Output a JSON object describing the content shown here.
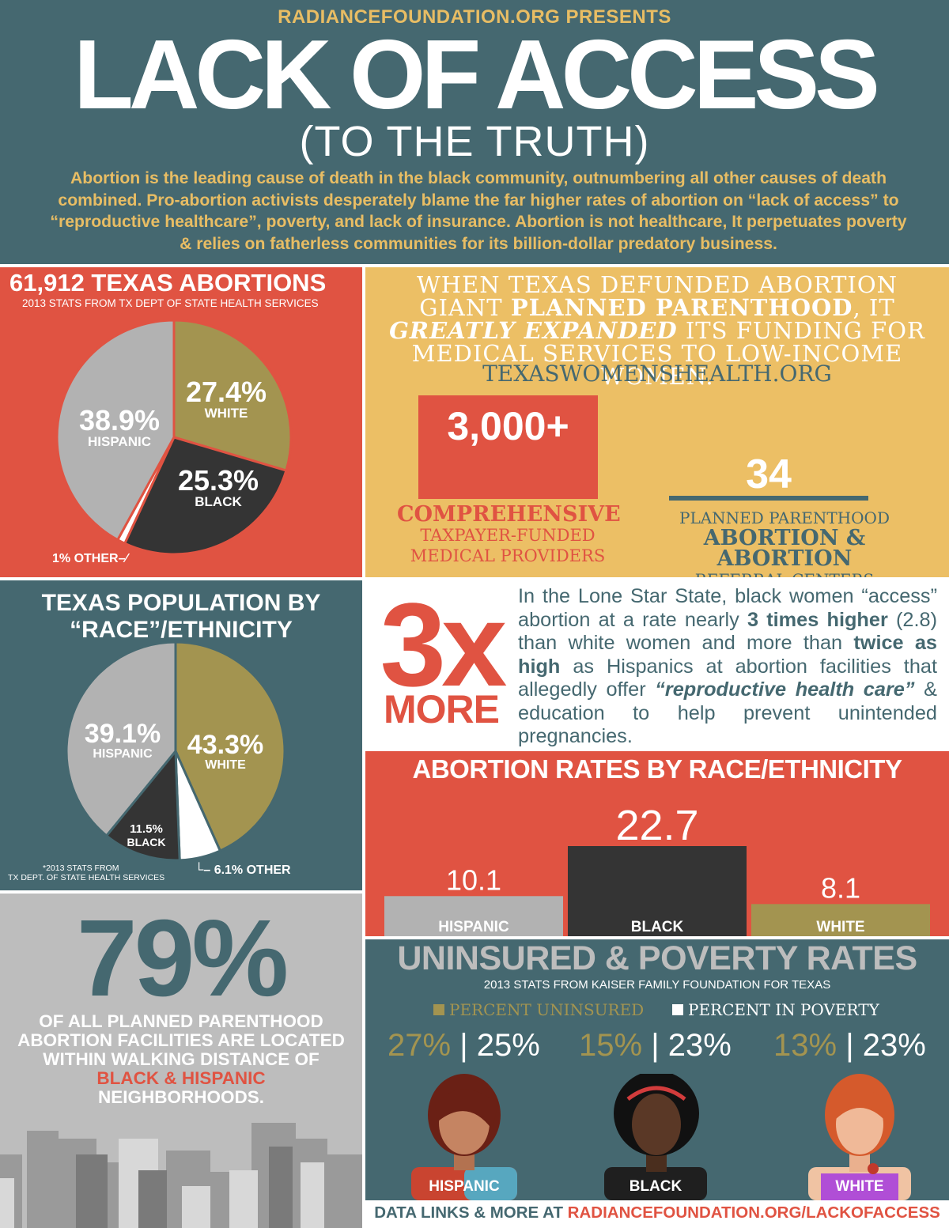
{
  "header": {
    "presents": "RADIANCEFOUNDATION.ORG PRESENTS",
    "title": "LACK OF ACCESS",
    "subtitle": "(TO THE TRUTH)",
    "intro": "Abortion is the leading cause of death in the black community, outnumbering all other causes of death combined. Pro-abortion activists desperately blame the far higher rates of abortion on “lack of access” to “reproductive healthcare”, poverty, and lack of insurance. Abortion is not healthcare, It perpetuates poverty & relies on fatherless communities for its billion-dollar predatory business."
  },
  "abortions_panel": {
    "title": "61,912 TEXAS ABORTIONS",
    "note": "2013 STATS FROM TX DEPT OF STATE HEALTH SERVICES"
  },
  "defund_panel": {
    "line1": "WHEN TEXAS DEFUNDED ABORTION",
    "line2_pre": "GIANT ",
    "line2_bold": "PLANNED PARENTHOOD",
    "line2_post": ", IT",
    "line3_bold": "GREATLY EXPANDED",
    "line3_post": " ITS FUNDING FOR",
    "line4": "MEDICAL SERVICES TO LOW-INCOME WOMEN.",
    "site": "TEXASWOMENSHEALTH.ORG",
    "stat1": {
      "value": "3,000+",
      "label1": "COMPREHENSIVE",
      "label2": "TAXPAYER-FUNDED",
      "label3": "MEDICAL PROVIDERS"
    },
    "stat2": {
      "value": "34",
      "label1": "PLANNED PARENTHOOD",
      "label2": "ABORTION & ABORTION",
      "label3": "REFERRAL CENTERS"
    }
  },
  "population_panel": {
    "title1": "TEXAS POPULATION BY",
    "title2": "“RACE”/ETHNICITY",
    "note1": "*2013 STATS FROM",
    "note2": "TX DEPT. OF STATE HEALTH SERVICES"
  },
  "threex_panel": {
    "big": "3x",
    "more": "MORE",
    "t1": "In the Lone Star State, black women “access” abortion at a rate nearly ",
    "t2": "3 times higher",
    "t3": " (2.8) than white women and more than ",
    "t4": "twice as high",
    "t5": " as Hispanics at abortion facilities that allegedly offer ",
    "t6": "“reproductive health care”",
    "t7": "  & education to help prevent unintended pregnancies."
  },
  "pct79_panel": {
    "big": "79%",
    "line1": "OF ALL PLANNED PARENTHOOD",
    "line2": "ABORTION FACILITIES ARE LOCATED",
    "line3": "WITHIN WALKING DISTANCE OF",
    "line4": "BLACK & HISPANIC",
    "line5": "NEIGHBORHOODS."
  },
  "uninsured_panel": {
    "title": "UNINSURED & POVERTY RATES",
    "note": "2013 STATS FROM KAISER FAMILY FOUNDATION FOR TEXAS",
    "legend_uninsured": "PERCENT UNINSURED",
    "legend_poverty": "PERCENT IN POVERTY",
    "sep": "|"
  },
  "footer": {
    "pre": "DATA LINKS & MORE AT ",
    "link": "RADIANCEFOUNDATION.ORG/LACKOFACCESS"
  },
  "colors": {
    "teal": "#456870",
    "red": "#e05342",
    "gold": "#e8bd64",
    "olive": "#a39450",
    "dark": "#343434",
    "gray": "#b2b2b2"
  },
  "chart_data": [
    {
      "type": "pie",
      "title": "61,912 TEXAS ABORTIONS",
      "slices": [
        {
          "name": "WHITE",
          "label": "27.4%",
          "value": 27.4,
          "color": "#a39450"
        },
        {
          "name": "BLACK",
          "label": "25.3%",
          "value": 25.3,
          "color": "#343434"
        },
        {
          "name": "OTHER",
          "label": "1%",
          "value": 1,
          "color": "#ffffff"
        },
        {
          "name": "HISPANIC",
          "label": "38.9%",
          "value": 38.9,
          "color": "#b2b2b2"
        }
      ]
    },
    {
      "type": "pie",
      "title": "TEXAS POPULATION BY “RACE”/ETHNICITY",
      "slices": [
        {
          "name": "WHITE",
          "label": "43.3%",
          "value": 43.3,
          "color": "#a39450"
        },
        {
          "name": "OTHER",
          "label": "6.1%",
          "value": 6.1,
          "color": "#ffffff"
        },
        {
          "name": "BLACK",
          "label": "11.5%",
          "value": 11.5,
          "color": "#343434"
        },
        {
          "name": "HISPANIC",
          "label": "39.1%",
          "value": 39.1,
          "color": "#b2b2b2"
        }
      ]
    },
    {
      "type": "bar",
      "title": "ABORTION RATES BY RACE/ETHNICITY",
      "categories": [
        "HISPANIC",
        "BLACK",
        "WHITE"
      ],
      "values": [
        10.1,
        22.7,
        8.1
      ],
      "labels": [
        "10.1",
        "22.7",
        "8.1"
      ],
      "colors": [
        "#b2b2b2",
        "#343434",
        "#a39450"
      ],
      "ylim": [
        0,
        22.7
      ]
    },
    {
      "type": "table",
      "title": "UNINSURED & POVERTY RATES",
      "columns": [
        "PERCENT UNINSURED",
        "PERCENT IN POVERTY"
      ],
      "rows": [
        {
          "group": "HISPANIC",
          "uninsured": "27%",
          "poverty": "25%"
        },
        {
          "group": "BLACK",
          "uninsured": "15%",
          "poverty": "23%"
        },
        {
          "group": "WHITE",
          "uninsured": "13%",
          "poverty": "23%"
        }
      ]
    }
  ]
}
